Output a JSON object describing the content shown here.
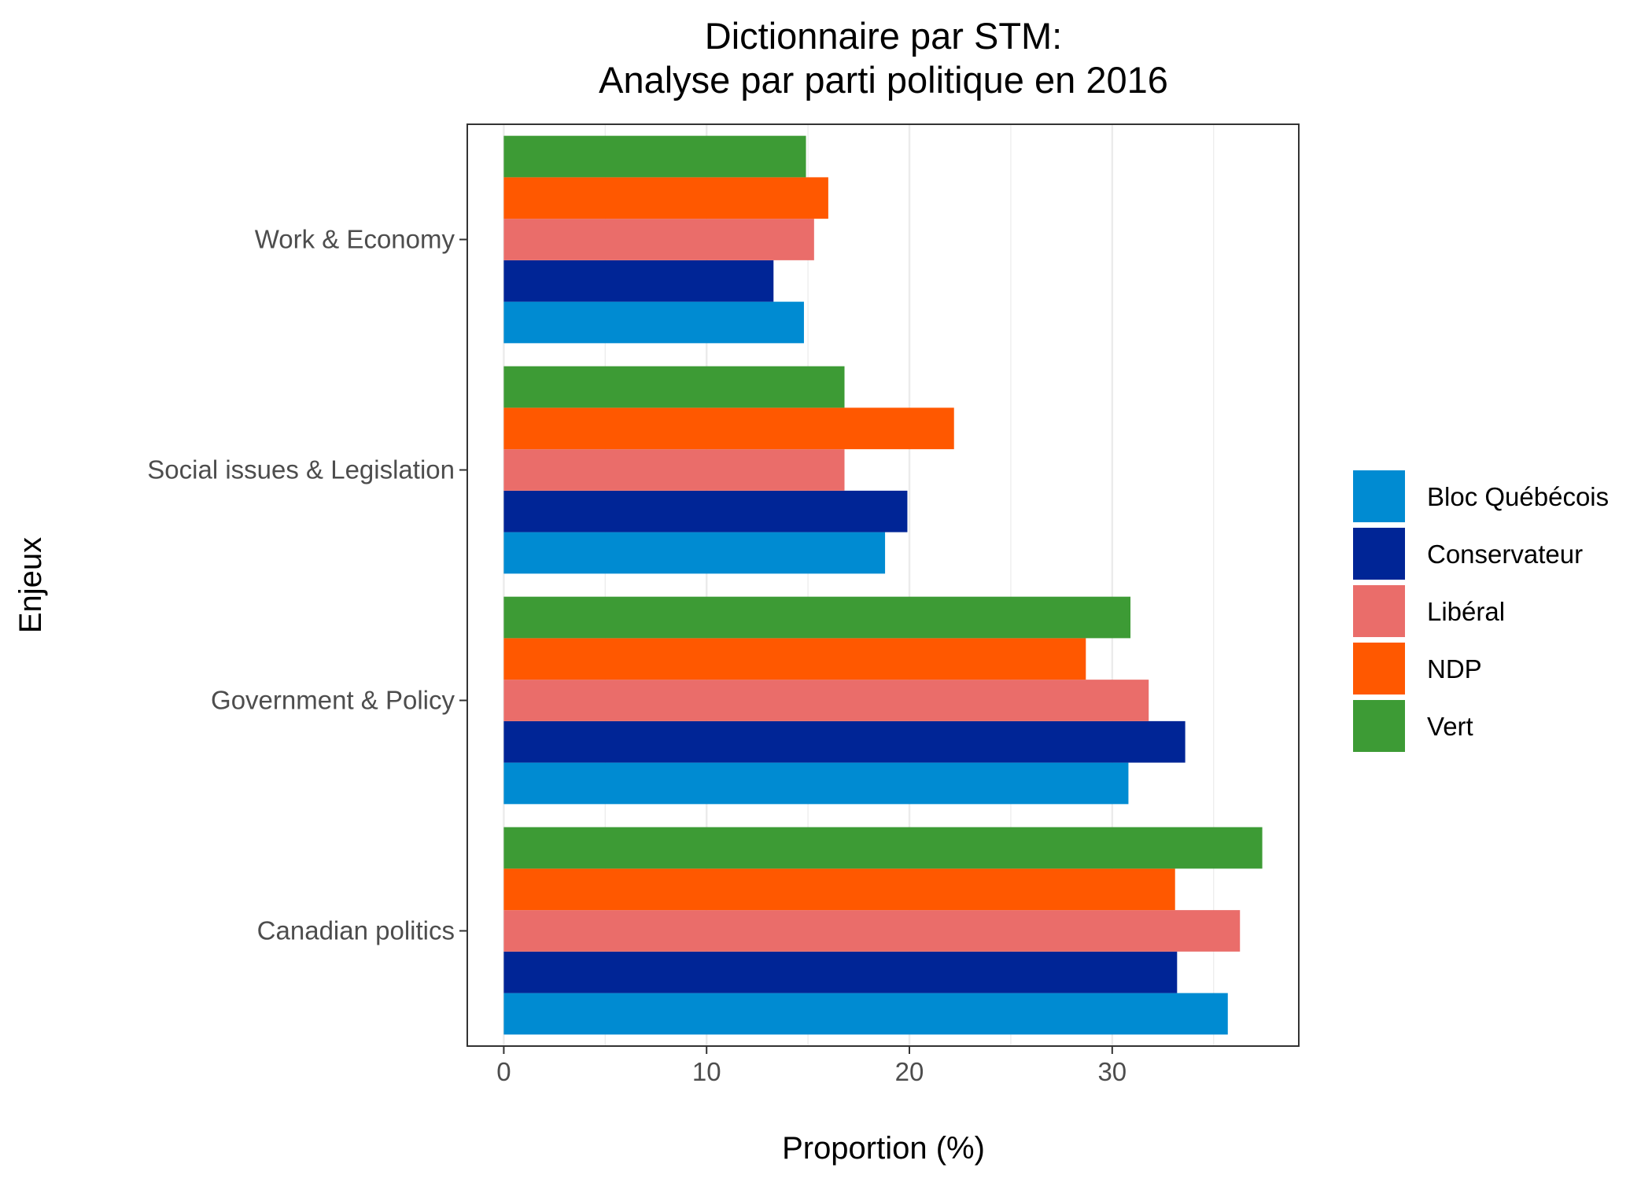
{
  "chart_data": {
    "type": "bar",
    "orientation": "horizontal",
    "title": [
      "Dictionnaire par STM:",
      "Analyse par parti politique en 2016"
    ],
    "xlabel": "Proportion (%)",
    "ylabel": "Enjeux",
    "xlim": [
      -1.8,
      39.2
    ],
    "xticks": [
      0,
      10,
      20,
      30
    ],
    "grid": true,
    "legend_position": "right",
    "categories": [
      "Work & Economy",
      "Social issues & Legislation",
      "Government & Policy",
      "Canadian politics"
    ],
    "series": [
      {
        "name": "Bloc Québécois",
        "color": "#008bd2",
        "values": [
          14.8,
          18.8,
          30.8,
          35.7
        ]
      },
      {
        "name": "Conservateur",
        "color": "#002596",
        "values": [
          13.3,
          19.9,
          33.6,
          33.2
        ]
      },
      {
        "name": "Libéral",
        "color": "#ea6d6a",
        "values": [
          15.3,
          16.8,
          31.8,
          36.3
        ]
      },
      {
        "name": "NDP",
        "color": "#ff5800",
        "values": [
          16.0,
          22.2,
          28.7,
          33.1
        ]
      },
      {
        "name": "Vert",
        "color": "#3d9b35",
        "values": [
          14.9,
          16.8,
          30.9,
          37.4
        ]
      }
    ]
  }
}
